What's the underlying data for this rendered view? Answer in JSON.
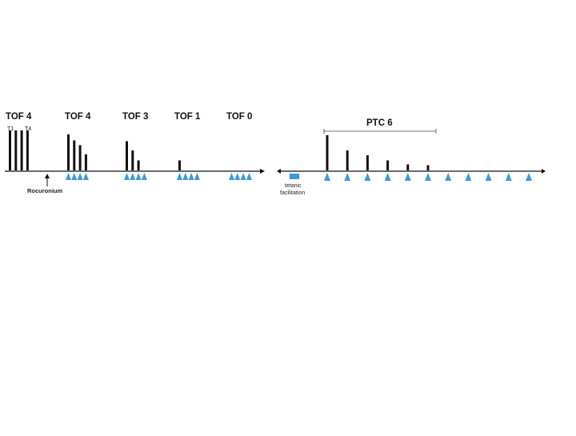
{
  "colors": {
    "bar": "#111111",
    "stimulus": "#3d9ad1",
    "axis": "#111111"
  },
  "left_panel": {
    "groups": [
      {
        "title": "TOF 4",
        "twitch_heights": [
          1.0,
          1.0,
          1.0,
          1.0
        ],
        "stimuli": 0,
        "labels": [
          "T1",
          "T4"
        ]
      },
      {
        "title": "TOF 4",
        "twitch_heights": [
          0.9,
          0.75,
          0.63,
          0.4
        ],
        "stimuli": 4
      },
      {
        "title": "TOF 3",
        "twitch_heights": [
          0.73,
          0.5,
          0.25
        ],
        "stimuli": 4
      },
      {
        "title": "TOF 1",
        "twitch_heights": [
          0.25
        ],
        "stimuli": 4
      },
      {
        "title": "TOF 0",
        "twitch_heights": [],
        "stimuli": 4
      }
    ],
    "drug_label": "Rocuronium"
  },
  "right_panel": {
    "title": "PTC 6",
    "tetanic_label_line1": "tetanic",
    "tetanic_label_line2": "facilitation",
    "ptc_heights": [
      0.88,
      0.5,
      0.38,
      0.25,
      0.15,
      0.13
    ],
    "total_stimuli": 11
  }
}
